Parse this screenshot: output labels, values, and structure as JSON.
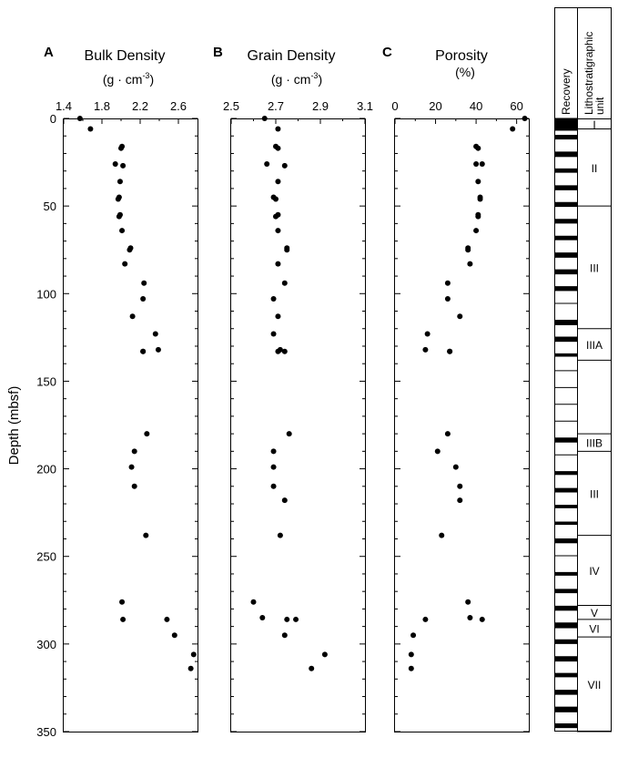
{
  "y_axis": {
    "label": "Depth (mbsf)",
    "ticks": [
      "0",
      "50",
      "100",
      "150",
      "200",
      "250",
      "300",
      "350"
    ],
    "range": [
      0,
      350
    ]
  },
  "panels": [
    {
      "letter": "A",
      "title": "Bulk Density",
      "unit_prefix": "(g · cm",
      "unit_exp": "-3",
      "unit_suffix": ")",
      "ticks": [
        "1.4",
        "1.8",
        "2.2",
        "2.6"
      ]
    },
    {
      "letter": "B",
      "title": "Grain Density",
      "unit_prefix": "(g · cm",
      "unit_exp": "-3",
      "unit_suffix": ")",
      "ticks": [
        "2.5",
        "2.7",
        "2.9",
        "3.1"
      ]
    },
    {
      "letter": "C",
      "title": "Porosity",
      "unit_prefix": "(%)",
      "unit_exp": "",
      "unit_suffix": "",
      "ticks": [
        "0",
        "20",
        "40",
        "60"
      ]
    }
  ],
  "lith_column": {
    "recovery_label": "Recovery",
    "unit_label_1": "Lithostratigraphic",
    "unit_label_2": "unit",
    "units": [
      {
        "label": "I",
        "top": 0,
        "bottom": 6
      },
      {
        "label": "II",
        "top": 6,
        "bottom": 50
      },
      {
        "label": "III",
        "top": 50,
        "bottom": 120
      },
      {
        "label": "IIIA",
        "top": 120,
        "bottom": 138
      },
      {
        "label": "",
        "top": 138,
        "bottom": 180
      },
      {
        "label": "IIIB",
        "top": 180,
        "bottom": 190
      },
      {
        "label": "III",
        "top": 190,
        "bottom": 238
      },
      {
        "label": "IV",
        "top": 238,
        "bottom": 278
      },
      {
        "label": "V",
        "top": 278,
        "bottom": 286
      },
      {
        "label": "VI",
        "top": 286,
        "bottom": 296
      },
      {
        "label": "VII",
        "top": 296,
        "bottom": 350
      }
    ]
  },
  "colors": {
    "marker": "#000000",
    "axis": "#000000",
    "background": "#ffffff"
  },
  "chart_data": [
    {
      "type": "scatter",
      "panel": "A",
      "title": "Bulk Density",
      "xlabel": "(g · cm-3)",
      "ylabel": "Depth (mbsf)",
      "xlim": [
        1.4,
        2.8
      ],
      "ylim": [
        350,
        0
      ],
      "y_inverted": true,
      "x": [
        1.57,
        1.68,
        2.01,
        2.0,
        1.94,
        2.02,
        1.99,
        1.98,
        1.97,
        1.99,
        1.98,
        2.01,
        2.1,
        2.09,
        2.04,
        2.24,
        2.23,
        2.12,
        2.36,
        2.39,
        2.23,
        2.23,
        2.27,
        2.14,
        2.11,
        2.14,
        2.26,
        2.01,
        2.02,
        2.48,
        2.56,
        2.76,
        2.73
      ],
      "y": [
        0,
        6,
        16,
        17,
        26,
        27,
        36,
        45,
        46,
        55,
        56,
        64,
        74,
        75,
        83,
        94,
        103,
        113,
        123,
        132,
        133,
        133,
        180,
        190,
        199,
        210,
        238,
        276,
        286,
        286,
        295,
        306,
        314
      ]
    },
    {
      "type": "scatter",
      "panel": "B",
      "title": "Grain Density",
      "xlabel": "(g · cm-3)",
      "ylabel": "Depth (mbsf)",
      "xlim": [
        2.5,
        3.1
      ],
      "ylim": [
        350,
        0
      ],
      "y_inverted": true,
      "x": [
        2.65,
        2.71,
        2.7,
        2.71,
        2.66,
        2.74,
        2.71,
        2.69,
        2.7,
        2.71,
        2.7,
        2.71,
        2.75,
        2.75,
        2.71,
        2.74,
        2.69,
        2.71,
        2.69,
        2.72,
        2.71,
        2.74,
        2.76,
        2.69,
        2.69,
        2.69,
        2.74,
        2.72,
        2.6,
        2.64,
        2.75,
        2.79,
        2.74,
        2.92,
        2.86
      ],
      "y": [
        0,
        6,
        16,
        17,
        26,
        27,
        36,
        45,
        46,
        55,
        56,
        64,
        74,
        75,
        83,
        94,
        103,
        113,
        123,
        132,
        133,
        133,
        180,
        190,
        199,
        210,
        218,
        238,
        276,
        285,
        286,
        286,
        295,
        306,
        314
      ]
    },
    {
      "type": "scatter",
      "panel": "C",
      "title": "Porosity",
      "xlabel": "(%)",
      "ylabel": "Depth (mbsf)",
      "xlim": [
        0,
        66
      ],
      "ylim": [
        350,
        0
      ],
      "y_inverted": true,
      "x": [
        64,
        58,
        40,
        41,
        40,
        43,
        41,
        42,
        42,
        41,
        41,
        40,
        36,
        36,
        37,
        26,
        26,
        32,
        16,
        15,
        27,
        27,
        26,
        21,
        30,
        32,
        32,
        23,
        36,
        37,
        43,
        15,
        9,
        8,
        8
      ],
      "y": [
        0,
        6,
        16,
        17,
        26,
        26,
        36,
        45,
        46,
        55,
        56,
        64,
        74,
        75,
        83,
        94,
        103,
        113,
        123,
        132,
        133,
        133,
        180,
        190,
        199,
        210,
        218,
        238,
        276,
        285,
        286,
        286,
        295,
        306,
        314
      ]
    }
  ]
}
